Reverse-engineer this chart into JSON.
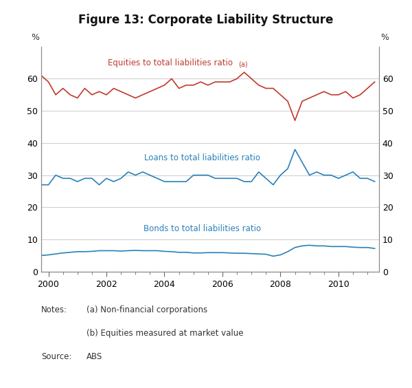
{
  "title": "Figure 13: Corporate Liability Structure",
  "title_fontsize": 12,
  "ylabel_left": "%",
  "ylabel_right": "%",
  "ylim": [
    0,
    70
  ],
  "yticks": [
    0,
    10,
    20,
    30,
    40,
    50,
    60
  ],
  "xlim_start": 1999.75,
  "xlim_end": 2011.4,
  "xticks": [
    2000,
    2002,
    2004,
    2006,
    2008,
    2010
  ],
  "background_color": "#ffffff",
  "grid_color": "#d0d0d0",
  "equities_color": "#c0392b",
  "loans_color": "#2980b9",
  "bonds_color": "#2980b9",
  "equities_label": "Equities to total liabilities ratio",
  "equities_superscript": "(a)",
  "loans_label": "Loans to total liabilities ratio",
  "bonds_label": "Bonds to total liabilities ratio",
  "note1_key": "Notes:",
  "note1_val": "(a) Non-financial corporations",
  "note2_val": "(b) Equities measured at market value",
  "note3_key": "Source:",
  "note3_val": "ABS",
  "equities_x": [
    1999.75,
    2000.0,
    2000.25,
    2000.5,
    2000.75,
    2001.0,
    2001.25,
    2001.5,
    2001.75,
    2002.0,
    2002.25,
    2002.5,
    2002.75,
    2003.0,
    2003.25,
    2003.5,
    2003.75,
    2004.0,
    2004.25,
    2004.5,
    2004.75,
    2005.0,
    2005.25,
    2005.5,
    2005.75,
    2006.0,
    2006.25,
    2006.5,
    2006.75,
    2007.0,
    2007.25,
    2007.5,
    2007.75,
    2008.0,
    2008.25,
    2008.5,
    2008.75,
    2009.0,
    2009.25,
    2009.5,
    2009.75,
    2010.0,
    2010.25,
    2010.5,
    2010.75,
    2011.0,
    2011.25
  ],
  "equities_y": [
    61,
    59,
    55,
    57,
    55,
    54,
    57,
    55,
    56,
    55,
    57,
    56,
    55,
    54,
    55,
    56,
    57,
    58,
    60,
    57,
    58,
    58,
    59,
    58,
    59,
    59,
    59,
    60,
    62,
    60,
    58,
    57,
    57,
    55,
    53,
    47,
    53,
    54,
    55,
    56,
    55,
    55,
    56,
    54,
    55,
    57,
    59
  ],
  "loans_x": [
    1999.75,
    2000.0,
    2000.25,
    2000.5,
    2000.75,
    2001.0,
    2001.25,
    2001.5,
    2001.75,
    2002.0,
    2002.25,
    2002.5,
    2002.75,
    2003.0,
    2003.25,
    2003.5,
    2003.75,
    2004.0,
    2004.25,
    2004.5,
    2004.75,
    2005.0,
    2005.25,
    2005.5,
    2005.75,
    2006.0,
    2006.25,
    2006.5,
    2006.75,
    2007.0,
    2007.25,
    2007.5,
    2007.75,
    2008.0,
    2008.25,
    2008.5,
    2008.75,
    2009.0,
    2009.25,
    2009.5,
    2009.75,
    2010.0,
    2010.25,
    2010.5,
    2010.75,
    2011.0,
    2011.25
  ],
  "loans_y": [
    27,
    27,
    30,
    29,
    29,
    28,
    29,
    29,
    27,
    29,
    28,
    29,
    31,
    30,
    31,
    30,
    29,
    28,
    28,
    28,
    28,
    30,
    30,
    30,
    29,
    29,
    29,
    29,
    28,
    28,
    31,
    29,
    27,
    30,
    32,
    38,
    34,
    30,
    31,
    30,
    30,
    29,
    30,
    31,
    29,
    29,
    28
  ],
  "bonds_x": [
    1999.75,
    2000.0,
    2000.25,
    2000.5,
    2000.75,
    2001.0,
    2001.25,
    2001.5,
    2001.75,
    2002.0,
    2002.25,
    2002.5,
    2002.75,
    2003.0,
    2003.25,
    2003.5,
    2003.75,
    2004.0,
    2004.25,
    2004.5,
    2004.75,
    2005.0,
    2005.25,
    2005.5,
    2005.75,
    2006.0,
    2006.25,
    2006.5,
    2006.75,
    2007.0,
    2007.25,
    2007.5,
    2007.75,
    2008.0,
    2008.25,
    2008.5,
    2008.75,
    2009.0,
    2009.25,
    2009.5,
    2009.75,
    2010.0,
    2010.25,
    2010.5,
    2010.75,
    2011.0,
    2011.25
  ],
  "bonds_y": [
    5,
    5.2,
    5.5,
    5.8,
    6.0,
    6.2,
    6.2,
    6.3,
    6.5,
    6.5,
    6.5,
    6.4,
    6.5,
    6.6,
    6.5,
    6.5,
    6.5,
    6.3,
    6.2,
    6.0,
    6.0,
    5.8,
    5.8,
    5.9,
    5.9,
    5.9,
    5.8,
    5.7,
    5.7,
    5.6,
    5.5,
    5.4,
    4.8,
    5.2,
    6.2,
    7.5,
    8.0,
    8.2,
    8.0,
    8.0,
    7.8,
    7.8,
    7.8,
    7.6,
    7.5,
    7.5,
    7.2
  ]
}
